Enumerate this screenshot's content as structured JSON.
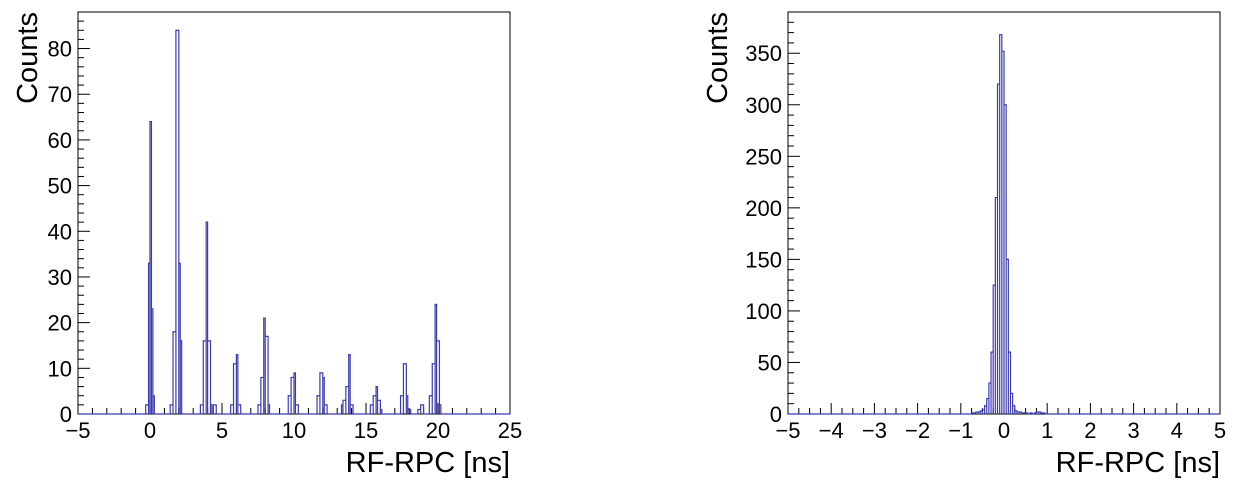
{
  "chart_data": [
    {
      "type": "histogram",
      "xlabel": "RF-RPC [ns]",
      "ylabel": "Counts",
      "xlim": [
        -5,
        25
      ],
      "ylim": [
        0,
        88
      ],
      "x_ticks": [
        -5,
        0,
        5,
        10,
        15,
        20,
        25
      ],
      "x_tick_labels": [
        "−5",
        "0",
        "5",
        "10",
        "15",
        "20",
        "25"
      ],
      "y_ticks": [
        0,
        10,
        20,
        30,
        40,
        50,
        60,
        70,
        80
      ],
      "y_tick_labels": [
        "0",
        "10",
        "20",
        "30",
        "40",
        "50",
        "60",
        "70",
        "80"
      ],
      "line_color": "#3b3bb0",
      "bins": [
        [
          -0.3,
          -0.1,
          2
        ],
        [
          -0.1,
          0.0,
          33
        ],
        [
          0.0,
          0.1,
          64
        ],
        [
          0.1,
          0.2,
          23
        ],
        [
          0.2,
          0.3,
          4
        ],
        [
          1.4,
          1.6,
          2
        ],
        [
          1.6,
          1.8,
          18
        ],
        [
          1.8,
          2.0,
          84
        ],
        [
          2.0,
          2.1,
          33
        ],
        [
          2.1,
          2.2,
          16
        ],
        [
          3.5,
          3.7,
          2
        ],
        [
          3.7,
          3.9,
          16
        ],
        [
          3.9,
          4.0,
          42
        ],
        [
          4.0,
          4.2,
          16
        ],
        [
          4.2,
          4.3,
          2
        ],
        [
          4.4,
          4.6,
          2
        ],
        [
          5.6,
          5.8,
          2
        ],
        [
          5.8,
          6.0,
          11
        ],
        [
          6.0,
          6.1,
          13
        ],
        [
          6.1,
          6.3,
          2
        ],
        [
          7.5,
          7.7,
          2
        ],
        [
          7.7,
          7.9,
          8
        ],
        [
          7.9,
          8.0,
          21
        ],
        [
          8.0,
          8.2,
          17
        ],
        [
          8.2,
          8.3,
          2
        ],
        [
          9.6,
          9.8,
          4
        ],
        [
          9.8,
          10.0,
          8
        ],
        [
          10.0,
          10.1,
          9
        ],
        [
          10.1,
          10.3,
          2
        ],
        [
          11.6,
          11.8,
          4
        ],
        [
          11.8,
          12.0,
          9
        ],
        [
          12.0,
          12.1,
          8
        ],
        [
          12.1,
          12.3,
          2
        ],
        [
          13.3,
          13.4,
          2
        ],
        [
          13.4,
          13.6,
          3
        ],
        [
          13.6,
          13.8,
          6
        ],
        [
          13.8,
          13.9,
          13
        ],
        [
          13.9,
          14.1,
          2
        ],
        [
          15.3,
          15.5,
          2
        ],
        [
          15.5,
          15.7,
          4
        ],
        [
          15.7,
          15.8,
          6
        ],
        [
          15.8,
          16.0,
          3
        ],
        [
          16.0,
          16.1,
          1
        ],
        [
          17.4,
          17.6,
          4
        ],
        [
          17.6,
          17.8,
          11
        ],
        [
          17.8,
          17.9,
          4
        ],
        [
          17.9,
          18.1,
          1
        ],
        [
          18.6,
          18.8,
          1
        ],
        [
          18.8,
          19.0,
          2
        ],
        [
          19.4,
          19.6,
          4
        ],
        [
          19.6,
          19.8,
          11
        ],
        [
          19.8,
          19.9,
          24
        ],
        [
          19.9,
          20.1,
          16
        ],
        [
          20.1,
          20.2,
          2
        ]
      ]
    },
    {
      "type": "histogram",
      "xlabel": "RF-RPC [ns]",
      "ylabel": "Counts",
      "xlim": [
        -5,
        5
      ],
      "ylim": [
        0,
        390
      ],
      "x_ticks": [
        -5,
        -4,
        -3,
        -2,
        -1,
        0,
        1,
        2,
        3,
        4,
        5
      ],
      "x_tick_labels": [
        "−5",
        "−4",
        "−3",
        "−2",
        "−1",
        "0",
        "1",
        "2",
        "3",
        "4",
        "5"
      ],
      "y_ticks": [
        0,
        50,
        100,
        150,
        200,
        250,
        300,
        350
      ],
      "y_tick_labels": [
        "0",
        "50",
        "100",
        "150",
        "200",
        "250",
        "300",
        "350"
      ],
      "line_color": "#3b3bb0",
      "bins": [
        [
          -0.75,
          -0.7,
          1
        ],
        [
          -0.7,
          -0.65,
          1
        ],
        [
          -0.65,
          -0.6,
          2
        ],
        [
          -0.6,
          -0.55,
          2
        ],
        [
          -0.55,
          -0.5,
          3
        ],
        [
          -0.5,
          -0.45,
          4
        ],
        [
          -0.45,
          -0.4,
          8
        ],
        [
          -0.4,
          -0.35,
          15
        ],
        [
          -0.35,
          -0.3,
          30
        ],
        [
          -0.3,
          -0.25,
          60
        ],
        [
          -0.25,
          -0.2,
          125
        ],
        [
          -0.2,
          -0.15,
          210
        ],
        [
          -0.15,
          -0.1,
          320
        ],
        [
          -0.1,
          -0.05,
          368
        ],
        [
          -0.05,
          0.0,
          352
        ],
        [
          0.0,
          0.05,
          300
        ],
        [
          0.05,
          0.1,
          150
        ],
        [
          0.1,
          0.15,
          60
        ],
        [
          0.15,
          0.2,
          20
        ],
        [
          0.2,
          0.25,
          8
        ],
        [
          0.25,
          0.3,
          3
        ],
        [
          0.3,
          0.35,
          2
        ],
        [
          0.35,
          0.4,
          2
        ],
        [
          0.4,
          0.45,
          1
        ],
        [
          0.45,
          0.5,
          1
        ],
        [
          0.5,
          0.55,
          1
        ],
        [
          0.55,
          0.6,
          0
        ],
        [
          0.6,
          0.65,
          1
        ],
        [
          0.65,
          0.7,
          0
        ],
        [
          0.7,
          0.75,
          1
        ],
        [
          0.75,
          0.8,
          2
        ],
        [
          0.8,
          0.85,
          2
        ],
        [
          0.85,
          0.9,
          1
        ],
        [
          0.9,
          0.95,
          1
        ]
      ]
    }
  ]
}
